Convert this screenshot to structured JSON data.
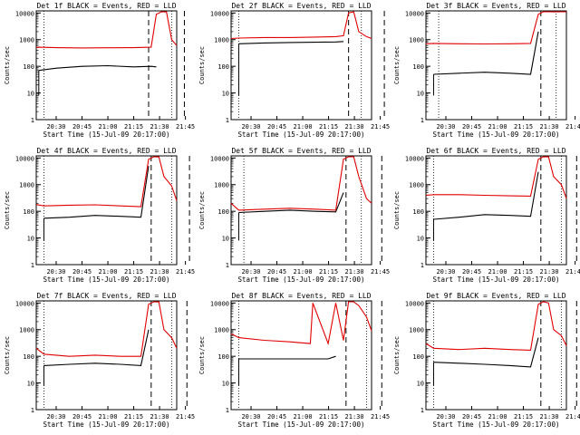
{
  "theme": {
    "background": "#ffffff",
    "axis_color": "#000000",
    "events_color": "#000000",
    "lld_color": "#e00000"
  },
  "chart_data": [
    {
      "type": "line",
      "title": "Det 1f BLACK = Events, RED = LLD",
      "xlabel": "Start Time (15-Jul-09 20:17:00)",
      "ylabel": "Counts/sec",
      "y_scale": "log",
      "ylim": [
        1,
        12000
      ],
      "y_ticks": [
        "1",
        "10",
        "100",
        "1000",
        "10000"
      ],
      "x_ticks": [
        "20:30",
        "20:45",
        "21:00",
        "21:15",
        "21:30",
        "21:45"
      ],
      "xlim_min": [
        17,
        72
      ],
      "x": [
        17,
        18,
        25,
        35,
        45,
        55,
        62,
        64,
        66,
        68,
        70,
        72
      ],
      "series": [
        {
          "role": "events",
          "values": [
            null,
            70,
            85,
            100,
            105,
            95,
            100,
            95,
            null,
            null,
            null,
            null
          ]
        },
        {
          "role": "lld",
          "values": [
            500,
            520,
            500,
            490,
            495,
            500,
            520,
            9000,
            12000,
            11000,
            1000,
            600
          ]
        }
      ],
      "vlines_dashed": [
        61,
        75
      ],
      "vlines_dotted": [
        20,
        70
      ],
      "events_start": 18,
      "events_end": 62
    },
    {
      "type": "line",
      "title": "Det 2f BLACK = Events, RED = LLD",
      "xlabel": "Start Time (15-Jul-09 20:17:00)",
      "ylabel": "Counts/sec",
      "y_scale": "log",
      "ylim": [
        1,
        12000
      ],
      "y_ticks": [
        "1",
        "10",
        "100",
        "1000",
        "10000"
      ],
      "x_ticks": [
        "20:30",
        "20:45",
        "21:00",
        "21:15",
        "21:30",
        "21:45"
      ],
      "x": [
        17,
        20,
        30,
        40,
        50,
        58,
        61,
        63,
        65,
        67,
        70,
        72
      ],
      "series": [
        {
          "role": "events",
          "values": [
            null,
            700,
            750,
            780,
            800,
            820,
            850,
            null,
            null,
            null,
            null,
            null
          ]
        },
        {
          "role": "lld",
          "values": [
            1100,
            1150,
            1200,
            1200,
            1250,
            1300,
            1400,
            10000,
            12000,
            2000,
            1300,
            1100
          ]
        }
      ],
      "vlines_dashed": [
        63,
        77
      ],
      "vlines_dotted": [
        20,
        68
      ],
      "events_start": 20,
      "events_end": 61
    },
    {
      "type": "line",
      "title": "Det 3f BLACK = Events, RED = LLD",
      "xlabel": "Start Time (15-Jul-09 20:17:00)",
      "ylabel": "Counts/sec",
      "y_scale": "log",
      "ylim": [
        1,
        12000
      ],
      "y_ticks": [
        "1",
        "10",
        "100",
        "1000",
        "10000"
      ],
      "x_ticks": [
        "20:30",
        "20:45",
        "21:00",
        "21:15",
        "21:30",
        "21:45"
      ],
      "x": [
        17,
        20,
        30,
        40,
        50,
        58,
        61,
        63,
        65,
        67,
        70,
        72
      ],
      "series": [
        {
          "role": "events",
          "values": [
            null,
            50,
            55,
            60,
            55,
            50,
            2000,
            null,
            null,
            null,
            null,
            null
          ]
        },
        {
          "role": "lld",
          "values": [
            700,
            720,
            700,
            690,
            700,
            720,
            9000,
            12000,
            12000,
            11000,
            12000,
            12000
          ]
        }
      ],
      "vlines_dashed": [
        62,
        78
      ],
      "vlines_dotted": [
        22,
        68
      ],
      "events_start": 20,
      "events_end": 61
    },
    {
      "type": "line",
      "title": "Det 4f BLACK = Events, RED = LLD",
      "xlabel": "Start Time (15-Jul-09 20:17:00)",
      "ylabel": "Counts/sec",
      "y_scale": "log",
      "ylim": [
        1,
        12000
      ],
      "y_ticks": [
        "1",
        "10",
        "100",
        "1000",
        "10000"
      ],
      "x_ticks": [
        "20:30",
        "20:45",
        "21:00",
        "21:15",
        "21:30",
        "21:45"
      ],
      "x": [
        17,
        20,
        30,
        40,
        50,
        58,
        61,
        63,
        65,
        67,
        70,
        72
      ],
      "series": [
        {
          "role": "events",
          "values": [
            null,
            55,
            60,
            70,
            65,
            60,
            5000,
            null,
            null,
            null,
            null,
            null
          ]
        },
        {
          "role": "lld",
          "values": [
            180,
            160,
            170,
            175,
            160,
            150,
            9000,
            12000,
            11000,
            2000,
            900,
            250
          ]
        }
      ],
      "vlines_dashed": [
        62,
        77
      ],
      "vlines_dotted": [
        20,
        70
      ],
      "events_start": 20,
      "events_end": 61
    },
    {
      "type": "line",
      "title": "Det 5f BLACK = Events, RED = LLD",
      "xlabel": "Start Time (15-Jul-09 20:17:00)",
      "ylabel": "Counts/sec",
      "y_scale": "log",
      "ylim": [
        1,
        12000
      ],
      "y_ticks": [
        "1",
        "10",
        "100",
        "1000",
        "10000"
      ],
      "x_ticks": [
        "20:30",
        "20:45",
        "21:00",
        "21:15",
        "21:30",
        "21:45"
      ],
      "x": [
        17,
        20,
        30,
        40,
        50,
        58,
        61,
        63,
        65,
        67,
        70,
        72
      ],
      "series": [
        {
          "role": "events",
          "values": [
            null,
            90,
            100,
            110,
            100,
            95,
            500,
            null,
            null,
            null,
            null,
            null
          ]
        },
        {
          "role": "lld",
          "values": [
            200,
            110,
            120,
            130,
            120,
            110,
            9000,
            12000,
            12000,
            2000,
            300,
            200
          ]
        }
      ],
      "vlines_dashed": [
        62,
        76
      ],
      "vlines_dotted": [
        22,
        68
      ],
      "events_start": 20,
      "events_end": 61
    },
    {
      "type": "line",
      "title": "Det 6f BLACK = Events, RED = LLD",
      "xlabel": "Start Time (15-Jul-09 20:17:00)",
      "ylabel": "Counts/sec",
      "y_scale": "log",
      "ylim": [
        1,
        12000
      ],
      "y_ticks": [
        "1",
        "10",
        "100",
        "1000",
        "10000"
      ],
      "x_ticks": [
        "20:30",
        "20:45",
        "21:00",
        "21:15",
        "21:30",
        "21:45"
      ],
      "x": [
        17,
        20,
        30,
        40,
        50,
        58,
        61,
        63,
        65,
        67,
        70,
        72
      ],
      "series": [
        {
          "role": "events",
          "values": [
            null,
            50,
            60,
            75,
            70,
            65,
            3000,
            null,
            null,
            null,
            null,
            null
          ]
        },
        {
          "role": "lld",
          "values": [
            400,
            420,
            420,
            400,
            380,
            370,
            9000,
            12000,
            11000,
            2000,
            1000,
            300
          ]
        }
      ],
      "vlines_dashed": [
        62,
        76
      ],
      "vlines_dotted": [
        20,
        70
      ],
      "events_start": 20,
      "events_end": 61
    },
    {
      "type": "line",
      "title": "Det 7f BLACK = Events, RED = LLD",
      "xlabel": "Start Time (15-Jul-09 20:17:00)",
      "ylabel": "Counts/sec",
      "y_scale": "log",
      "ylim": [
        1,
        12000
      ],
      "y_ticks": [
        "1",
        "10",
        "100",
        "1000",
        "10000"
      ],
      "x_ticks": [
        "20:30",
        "20:45",
        "21:00",
        "21:15",
        "21:30",
        "21:45"
      ],
      "x": [
        17,
        20,
        30,
        40,
        50,
        58,
        61,
        63,
        65,
        67,
        70,
        72
      ],
      "series": [
        {
          "role": "events",
          "values": [
            null,
            45,
            50,
            55,
            50,
            45,
            1000,
            null,
            null,
            null,
            null,
            null
          ]
        },
        {
          "role": "lld",
          "values": [
            200,
            120,
            100,
            110,
            100,
            100,
            9000,
            12000,
            11000,
            1000,
            500,
            200
          ]
        }
      ],
      "vlines_dashed": [
        62,
        76
      ],
      "vlines_dotted": [
        20,
        70
      ],
      "events_start": 20,
      "events_end": 61
    },
    {
      "type": "line",
      "title": "Det 8f BLACK = Events, RED = LLD",
      "xlabel": "Start Time (15-Jul-09 20:17:00)",
      "ylabel": "Counts/sec",
      "y_scale": "log",
      "ylim": [
        1,
        12000
      ],
      "y_ticks": [
        "1",
        "10",
        "100",
        "1000",
        "10000"
      ],
      "x_ticks": [
        "20:30",
        "20:45",
        "21:00",
        "21:15",
        "21:30",
        "21:45"
      ],
      "x": [
        17,
        20,
        30,
        40,
        48,
        49,
        55,
        58,
        61,
        63,
        65,
        67,
        70,
        72
      ],
      "series": [
        {
          "role": "events",
          "values": [
            null,
            80,
            80,
            80,
            80,
            80,
            80,
            100,
            null,
            null,
            null,
            null,
            null,
            null
          ]
        },
        {
          "role": "lld",
          "values": [
            700,
            500,
            400,
            350,
            300,
            10000,
            300,
            10000,
            400,
            12000,
            12000,
            8000,
            3000,
            900
          ]
        }
      ],
      "vlines_dashed": [
        62,
        76
      ],
      "vlines_dotted": [
        20,
        70
      ],
      "events_start": 20,
      "events_end": 61
    },
    {
      "type": "line",
      "title": "Det 9f BLACK = Events, RED = LLD",
      "xlabel": "Start Time (15-Jul-09 20:17:00)",
      "ylabel": "Counts/sec",
      "y_scale": "log",
      "ylim": [
        1,
        12000
      ],
      "y_ticks": [
        "1",
        "10",
        "100",
        "1000",
        "10000"
      ],
      "x_ticks": [
        "20:30",
        "20:45",
        "21:00",
        "21:15",
        "21:30",
        "21:45"
      ],
      "x": [
        17,
        20,
        30,
        40,
        50,
        58,
        61,
        63,
        65,
        67,
        70,
        72
      ],
      "series": [
        {
          "role": "events",
          "values": [
            null,
            60,
            55,
            50,
            45,
            40,
            500,
            null,
            null,
            null,
            null,
            null
          ]
        },
        {
          "role": "lld",
          "values": [
            300,
            200,
            180,
            200,
            180,
            170,
            9000,
            12000,
            10000,
            1000,
            600,
            250
          ]
        }
      ],
      "vlines_dashed": [
        62,
        76
      ],
      "vlines_dotted": [
        20,
        70
      ],
      "events_start": 20,
      "events_end": 61
    }
  ]
}
